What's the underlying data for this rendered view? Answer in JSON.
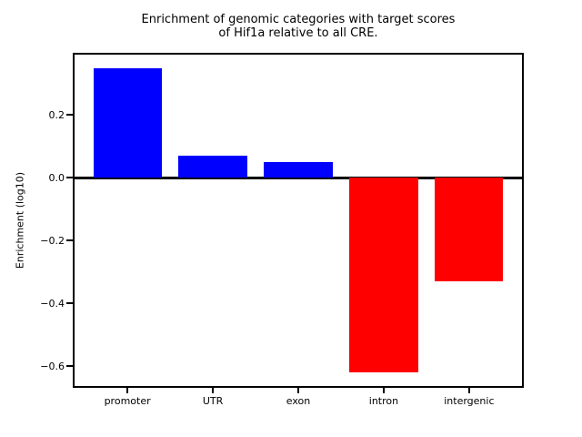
{
  "window": {
    "background": "#ffffff"
  },
  "chart_data": {
    "type": "bar",
    "title": "Enrichment of genomic categories with target scores\nof Hif1a relative to all CRE.",
    "xlabel": "",
    "ylabel": "Enrichment (log10)",
    "categories": [
      "promoter",
      "UTR",
      "exon",
      "intron",
      "intergenic"
    ],
    "values": [
      0.35,
      0.07,
      0.05,
      -0.62,
      -0.33
    ],
    "positive_color": "#0000ff",
    "negative_color": "#ff0000",
    "yticks": [
      {
        "label": "0.2",
        "value": 0.2
      },
      {
        "label": "0.0",
        "value": 0.0
      },
      {
        "label": "−0.2",
        "value": -0.2
      },
      {
        "label": "−0.4",
        "value": -0.4
      },
      {
        "label": "−0.6",
        "value": -0.6
      }
    ],
    "ylim": [
      -0.6685,
      0.3985
    ],
    "xlim": [
      -0.64,
      4.64
    ],
    "bar_width": 0.8,
    "zero_line": true,
    "grid": false,
    "legend": null,
    "frame_color": "#000000",
    "text_color": "#000000"
  }
}
